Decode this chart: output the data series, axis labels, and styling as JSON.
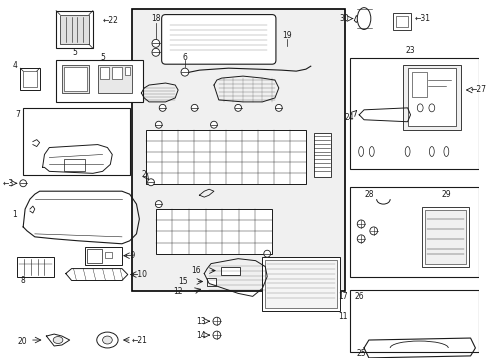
{
  "bg": "#ffffff",
  "fg": "#1a1a1a",
  "fw": 4.89,
  "fh": 3.6,
  "dpi": 100,
  "fs": 5.5
}
